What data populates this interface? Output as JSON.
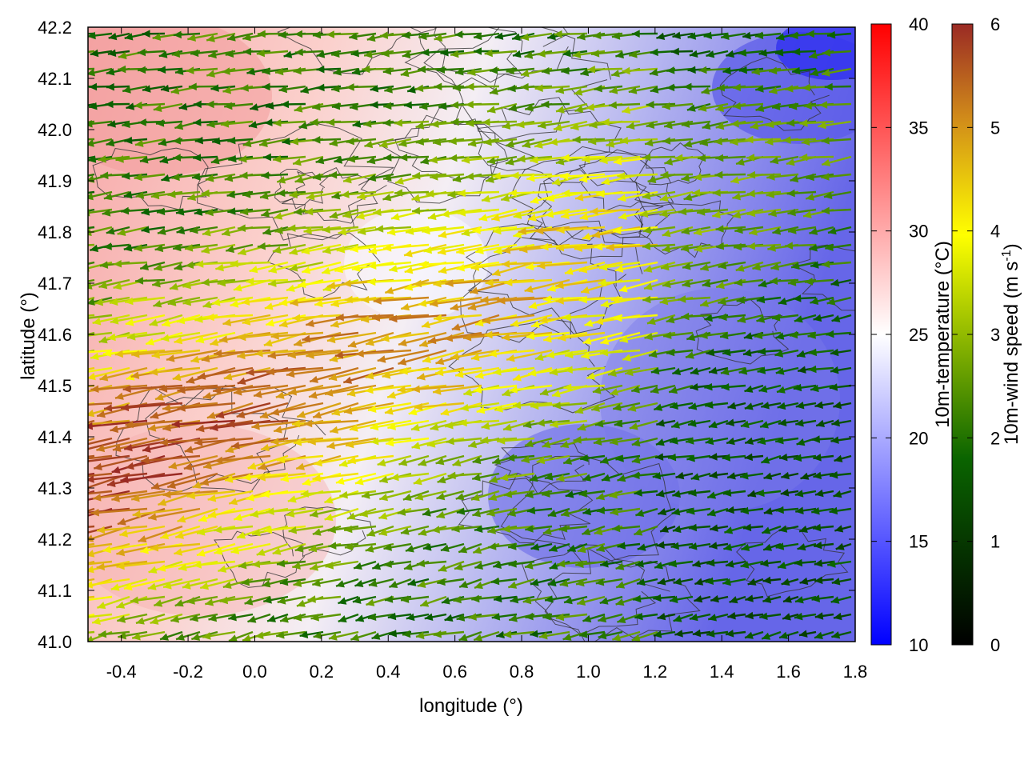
{
  "figure": {
    "x_label": "longitude (°)",
    "y_label": "latitude (°)",
    "x_ticks": [
      "-0.4",
      "-0.2",
      "0.0",
      "0.2",
      "0.4",
      "0.6",
      "0.8",
      "1.0",
      "1.2",
      "1.4",
      "1.6",
      "1.8"
    ],
    "y_ticks": [
      "41.0",
      "41.1",
      "41.2",
      "41.3",
      "41.4",
      "41.5",
      "41.6",
      "41.7",
      "41.8",
      "41.9",
      "42.0",
      "42.1",
      "42.2"
    ],
    "x_range": [
      -0.5,
      1.8
    ],
    "y_range": [
      41.0,
      42.2
    ]
  },
  "colorbars": [
    {
      "label": "10m-temperature (°C)",
      "ticks": [
        "10",
        "15",
        "20",
        "25",
        "30",
        "35",
        "40"
      ],
      "range": [
        10,
        40
      ],
      "colors": [
        "#0000ff",
        "#ffffff",
        "#ff0000"
      ]
    },
    {
      "label_main": "10m-wind speed (m s",
      "label_sup": "-1",
      "label_end": ")",
      "ticks": [
        "0",
        "1",
        "2",
        "3",
        "4",
        "5",
        "6"
      ],
      "range": [
        0,
        6
      ],
      "colors": [
        "#000000",
        "#0a6400",
        "#ffff00",
        "#d08a1a",
        "#9a2a24"
      ]
    }
  ]
}
